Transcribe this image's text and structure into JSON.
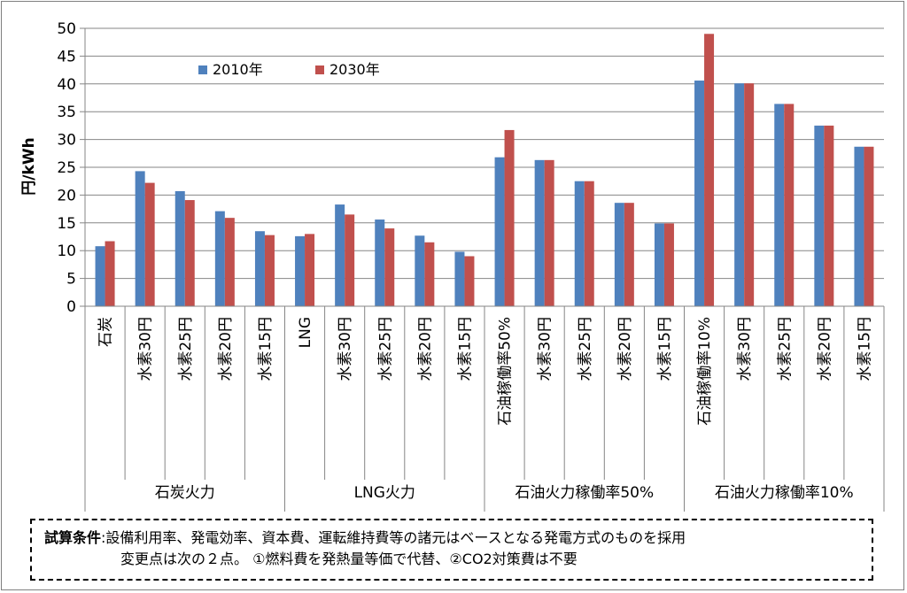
{
  "chart_data": {
    "type": "bar",
    "ylabel": "円/kWh",
    "ylim": [
      0,
      50
    ],
    "yticks": [
      0,
      5,
      10,
      15,
      20,
      25,
      30,
      35,
      40,
      45,
      50
    ],
    "grid": true,
    "legend_position": "top-left",
    "categories": [
      "石炭",
      "水素30円",
      "水素25円",
      "水素20円",
      "水素15円",
      "LNG",
      "水素30円",
      "水素25円",
      "水素20円",
      "水素15円",
      "石油稼働率50%",
      "水素30円",
      "水素25円",
      "水素20円",
      "水素15円",
      "石油稼働率10%",
      "水素30円",
      "水素25円",
      "水素20円",
      "水素15円"
    ],
    "groups": [
      {
        "label": "石炭火力",
        "count": 5
      },
      {
        "label": "LNG火力",
        "count": 5
      },
      {
        "label": "石油火力稼働率50%",
        "count": 5
      },
      {
        "label": "石油火力稼働率10%",
        "count": 5
      }
    ],
    "series": [
      {
        "name": "2010年",
        "color": "#4f81bd",
        "values": [
          10.8,
          24.3,
          20.7,
          17.1,
          13.5,
          12.6,
          18.3,
          15.6,
          12.7,
          9.8,
          26.8,
          26.3,
          22.5,
          18.6,
          14.9,
          40.6,
          40.1,
          36.4,
          32.5,
          28.7
        ]
      },
      {
        "name": "2030年",
        "color": "#c0504d",
        "values": [
          11.7,
          22.2,
          19.1,
          15.9,
          12.8,
          13.0,
          16.5,
          14.0,
          11.5,
          9.0,
          31.7,
          26.3,
          22.5,
          18.6,
          14.9,
          49.0,
          40.1,
          36.4,
          32.5,
          28.7
        ]
      }
    ]
  },
  "conditions": {
    "label": "試算条件",
    "line1": ":設備利用率、発電効率、資本費、運転維持費等の諸元はベースとなる発電方式のものを採用",
    "line2": "変更点は次の２点。 ①燃料費を発熱量等価で代替、②CO2対策費は不要"
  }
}
